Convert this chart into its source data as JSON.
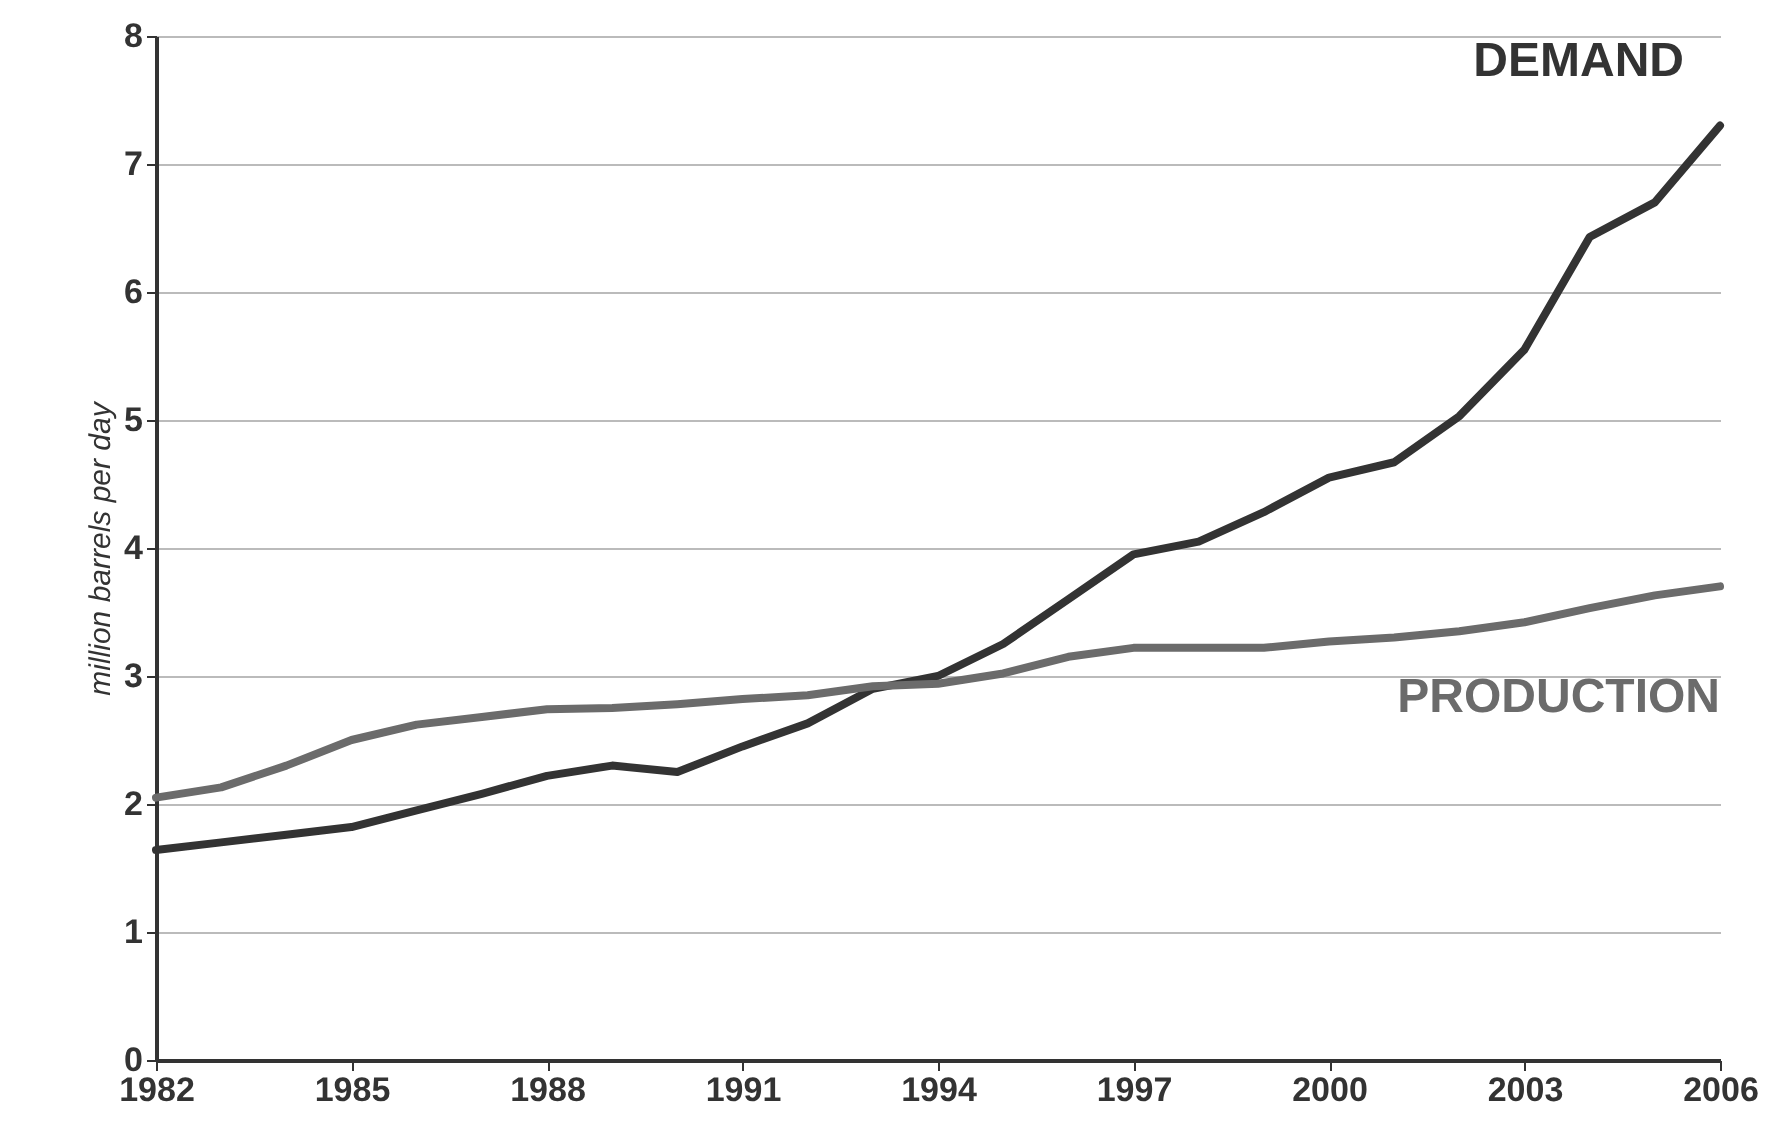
{
  "chart_data": {
    "type": "line",
    "ylabel": "million barrels per day",
    "x": [
      1982,
      1983,
      1984,
      1985,
      1986,
      1987,
      1988,
      1989,
      1990,
      1991,
      1992,
      1993,
      1994,
      1995,
      1996,
      1997,
      1998,
      1999,
      2000,
      2001,
      2002,
      2003,
      2004,
      2005,
      2006
    ],
    "series": [
      {
        "name": "DEMAND",
        "color": "#333333",
        "values": [
          1.64,
          1.7,
          1.76,
          1.82,
          1.95,
          2.08,
          2.22,
          2.3,
          2.25,
          2.45,
          2.63,
          2.9,
          3.0,
          3.25,
          3.6,
          3.95,
          4.05,
          4.28,
          4.55,
          4.67,
          5.03,
          5.55,
          6.43,
          6.7,
          7.3
        ]
      },
      {
        "name": "PRODUCTION",
        "color": "#6b6b6b",
        "values": [
          2.05,
          2.13,
          2.3,
          2.5,
          2.62,
          2.68,
          2.74,
          2.75,
          2.78,
          2.82,
          2.85,
          2.92,
          2.94,
          3.02,
          3.15,
          3.22,
          3.22,
          3.22,
          3.27,
          3.3,
          3.35,
          3.42,
          3.53,
          3.63,
          3.7
        ]
      }
    ],
    "xlim": [
      1982,
      2006
    ],
    "xticks": [
      1982,
      1985,
      1988,
      1991,
      1994,
      1997,
      2000,
      2003,
      2006
    ],
    "ylim": [
      0,
      8
    ],
    "yticks": [
      0,
      1,
      2,
      3,
      4,
      5,
      6,
      7,
      8
    ],
    "grid": "y",
    "marker": "none",
    "line_style": "solid"
  }
}
